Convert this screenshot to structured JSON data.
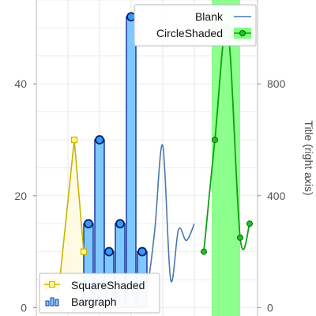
{
  "chart_data": {
    "type": "line",
    "title": "",
    "xlabel": "",
    "ylabel": "",
    "y2label": "Title (right axis)",
    "grid": true,
    "xlim": [
      0,
      14
    ],
    "ylim": [
      -1.5,
      55
    ],
    "y2lim": [
      -30,
      1100
    ],
    "y_ticks": [
      0,
      20,
      40
    ],
    "y_tick_labels": [
      "0",
      "20",
      "40"
    ],
    "y2_ticks": [
      0,
      400,
      800
    ],
    "y2_tick_labels": [
      "0",
      "400",
      "800"
    ],
    "series": [
      {
        "name": "Bargraph",
        "kind": "bar",
        "color": "#7fc8ff",
        "edge_color": "#1a3aa0",
        "x": [
          3.3,
          4.0,
          4.6,
          5.3,
          6.0,
          6.7
        ],
        "y": [
          15,
          30,
          10,
          15,
          52,
          10
        ]
      },
      {
        "name": "SquareShaded",
        "kind": "line-square",
        "color": "#c8b400",
        "fill": "#fffbe0",
        "x": [
          1.3,
          2.4,
          3.0
        ],
        "y": [
          0,
          30,
          10
        ]
      },
      {
        "name": "Blank",
        "kind": "line",
        "color": "#4a78b0",
        "x": [
          6.7,
          7.1,
          7.5,
          8.0,
          8.5,
          9.0,
          9.5,
          10.0
        ],
        "y": [
          0,
          5,
          14,
          29,
          5,
          14,
          12,
          15
        ]
      },
      {
        "name": "CircleShaded",
        "kind": "line-circle",
        "color": "#10a010",
        "fill": "#80ff80",
        "x": [
          10.6,
          11.3,
          12.1,
          12.9,
          13.5
        ],
        "y": [
          10,
          30,
          50,
          12.5,
          15
        ]
      }
    ],
    "legend_top": {
      "placement": "top-right",
      "items": [
        "Blank",
        "CircleShaded"
      ]
    },
    "legend_bottom": {
      "placement": "bottom-left",
      "items": [
        "SquareShaded",
        "Bargraph"
      ]
    }
  }
}
